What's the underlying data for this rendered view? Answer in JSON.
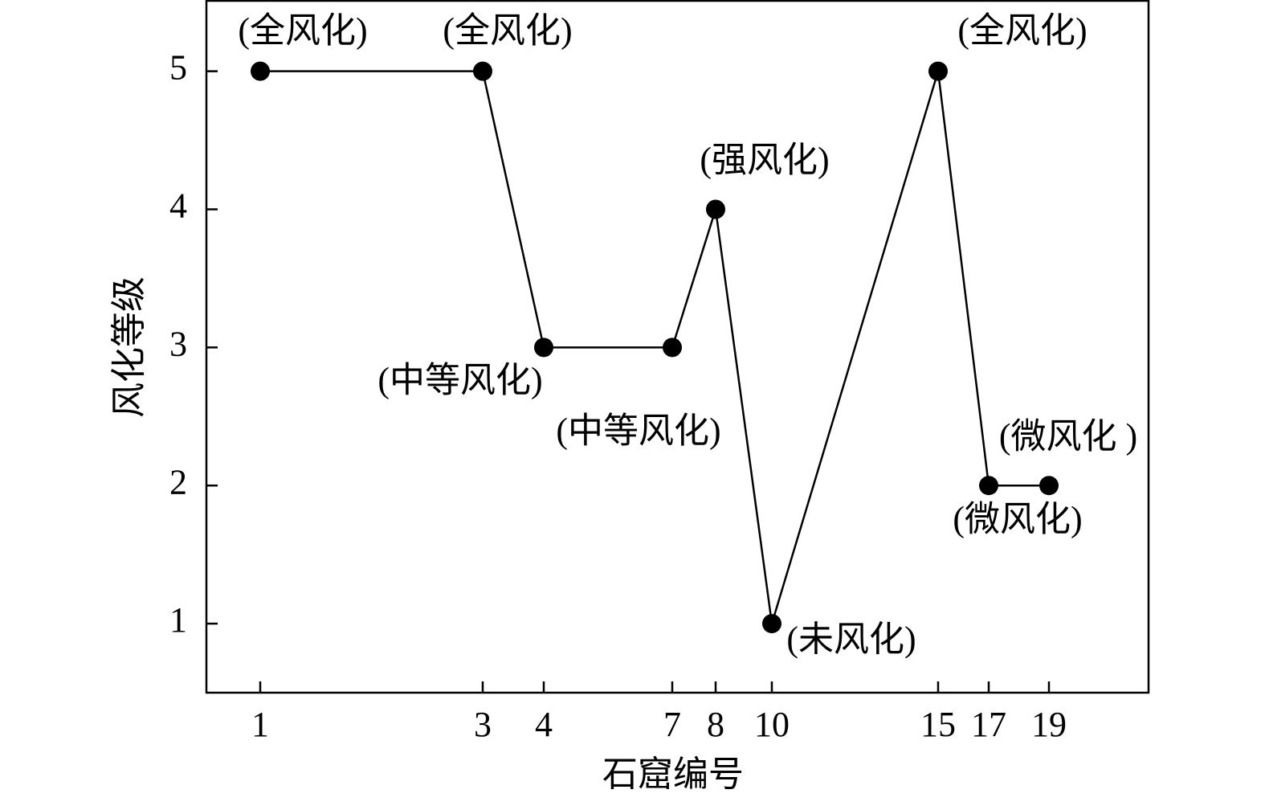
{
  "chart_data": {
    "type": "line",
    "x_label": "石窟编号",
    "y_label": "风化等级",
    "categories": [
      "1",
      "3",
      "4",
      "7",
      "8",
      "10",
      "15",
      "17",
      "19"
    ],
    "series": [
      {
        "color": "#000000",
        "values": [
          5,
          5,
          3,
          3,
          4,
          1,
          5,
          2,
          2
        ]
      }
    ],
    "annotations": [
      "(全风化)",
      "(全风化)",
      "(中等风化)",
      "(中等风化)",
      "(强风化)",
      "(未风化)",
      "(全风化)",
      "(微风化)",
      "(微风化 )"
    ],
    "ylim": [
      0.5,
      5.51
    ],
    "yticks": [
      1,
      2,
      3,
      4,
      5
    ],
    "grid": false
  }
}
